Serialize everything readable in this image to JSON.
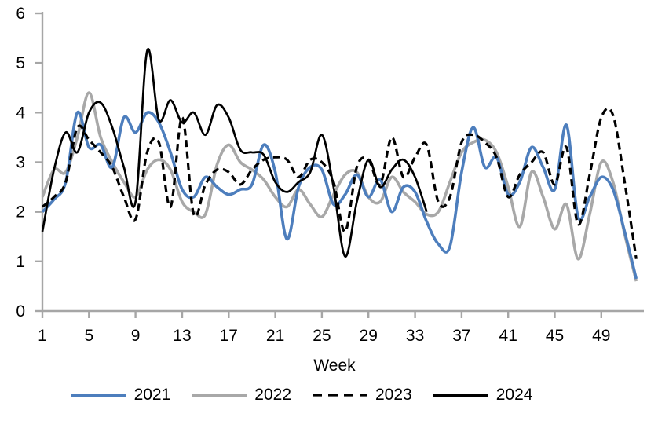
{
  "chart_data": {
    "type": "line",
    "title": "",
    "xlabel": "Week",
    "ylabel": "",
    "ylim": [
      0,
      6
    ],
    "yticks": [
      0,
      1,
      2,
      3,
      4,
      5,
      6
    ],
    "xticks": [
      1,
      5,
      9,
      13,
      17,
      21,
      25,
      29,
      33,
      37,
      41,
      45,
      49
    ],
    "x_start": 1,
    "x_end": 52,
    "grid": false,
    "legend_position": "bottom",
    "axis_color": "#A6A6A6",
    "series": [
      {
        "name": "2021",
        "color": "#4D7EBD",
        "style": "solid",
        "line_width": 3.6,
        "values": [
          2.0,
          2.25,
          2.6,
          4.0,
          3.3,
          3.35,
          2.9,
          3.9,
          3.6,
          4.0,
          3.8,
          3.2,
          2.45,
          2.3,
          2.7,
          2.5,
          2.35,
          2.45,
          2.55,
          3.35,
          2.8,
          1.45,
          2.5,
          2.9,
          2.85,
          2.15,
          2.35,
          2.75,
          2.3,
          2.65,
          2.0,
          2.5,
          2.4,
          1.8,
          1.35,
          1.3,
          2.8,
          3.7,
          2.9,
          3.1,
          2.35,
          2.6,
          3.3,
          2.9,
          2.45,
          3.75,
          1.9,
          2.3,
          2.7,
          2.45,
          1.6,
          0.65
        ]
      },
      {
        "name": "2022",
        "color": "#A8A8A8",
        "style": "solid",
        "line_width": 3.6,
        "values": [
          2.3,
          2.85,
          2.8,
          3.5,
          4.4,
          3.5,
          3.0,
          2.6,
          2.3,
          2.85,
          3.05,
          2.85,
          2.2,
          2.0,
          1.95,
          2.95,
          3.35,
          3.0,
          2.85,
          2.65,
          2.3,
          2.1,
          2.45,
          2.15,
          1.9,
          2.35,
          2.75,
          2.8,
          2.3,
          2.2,
          2.7,
          2.4,
          2.2,
          1.95,
          2.0,
          2.6,
          3.2,
          3.4,
          3.45,
          3.2,
          2.5,
          1.7,
          2.8,
          2.3,
          1.65,
          2.15,
          1.05,
          1.95,
          3.0,
          2.6,
          1.55,
          0.6
        ]
      },
      {
        "name": "2023",
        "color": "#000000",
        "style": "dashed",
        "line_width": 3.2,
        "values": [
          2.1,
          2.3,
          2.6,
          3.7,
          3.45,
          3.2,
          2.9,
          2.3,
          1.85,
          3.2,
          3.4,
          2.1,
          3.9,
          1.95,
          2.55,
          2.85,
          2.8,
          2.55,
          2.85,
          3.05,
          3.1,
          3.05,
          2.7,
          3.05,
          3.0,
          2.6,
          1.6,
          2.9,
          3.05,
          2.55,
          3.5,
          2.7,
          3.1,
          3.35,
          2.2,
          2.3,
          3.4,
          3.55,
          3.4,
          3.1,
          2.3,
          2.75,
          3.0,
          3.2,
          2.55,
          3.3,
          1.75,
          2.75,
          3.9,
          3.95,
          2.6,
          1.05
        ]
      },
      {
        "name": "2024",
        "color": "#000000",
        "style": "solid",
        "line_width": 2.7,
        "values": [
          1.6,
          2.85,
          3.6,
          3.2,
          4.0,
          4.2,
          3.7,
          2.9,
          2.2,
          5.25,
          3.85,
          4.25,
          3.8,
          4.0,
          3.55,
          4.15,
          3.9,
          3.25,
          3.2,
          3.15,
          2.6,
          2.4,
          2.6,
          2.8,
          3.55,
          2.5,
          1.1,
          2.2,
          3.05,
          2.5,
          2.85,
          3.05,
          2.7,
          2.0
        ]
      }
    ]
  }
}
